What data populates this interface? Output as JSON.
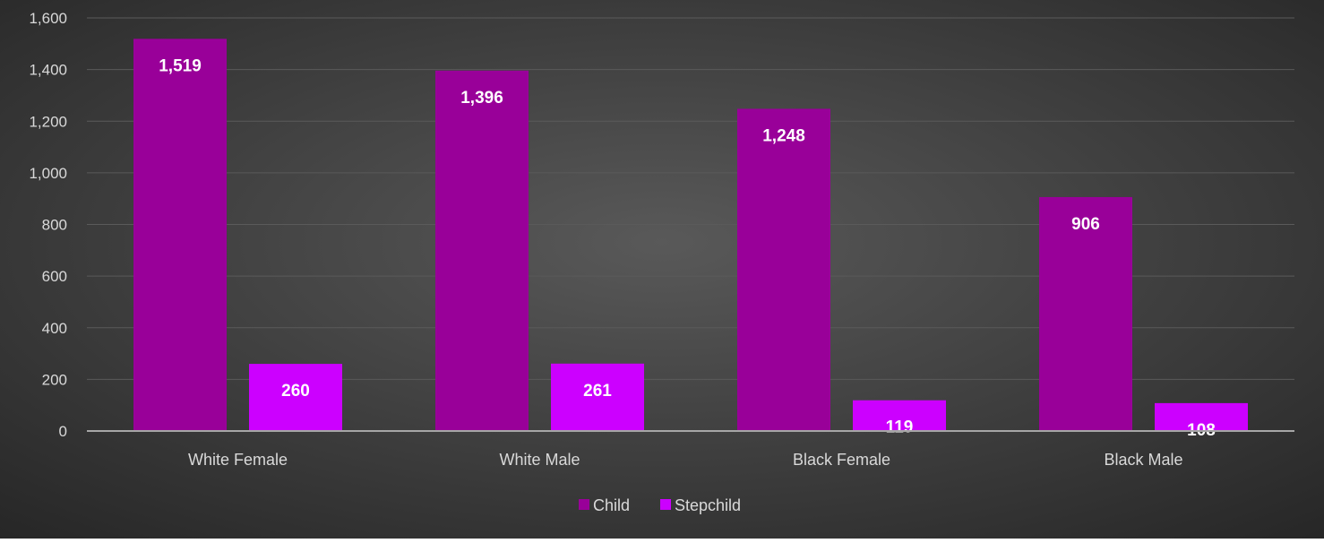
{
  "chart_data": {
    "type": "bar",
    "title": "",
    "xlabel": "",
    "ylabel": "",
    "categories": [
      "White Female",
      "White Male",
      "Black Female",
      "Black Male"
    ],
    "series": [
      {
        "name": "Child",
        "values": [
          1519,
          1396,
          1248,
          906
        ],
        "labels": [
          "1,519",
          "1,396",
          "1,248",
          "906"
        ],
        "color": "#990099"
      },
      {
        "name": "Stepchild",
        "values": [
          260,
          261,
          119,
          108
        ],
        "labels": [
          "260",
          "261",
          "119",
          "108"
        ],
        "color": "#cc00ff"
      }
    ],
    "ylim": [
      0,
      1600
    ],
    "yticks": [
      0,
      200,
      400,
      600,
      800,
      1000,
      1200,
      1400,
      1600
    ],
    "ytick_labels": [
      "0",
      "200",
      "400",
      "600",
      "800",
      "1,000",
      "1,200",
      "1,400",
      "1,600"
    ],
    "grid": true,
    "legend_position": "bottom",
    "background": "#3f3f3f",
    "gridline_color": "#5a5a5a",
    "axis_line_color": "#a6a6a6",
    "text_color": "#d9d9d9"
  }
}
